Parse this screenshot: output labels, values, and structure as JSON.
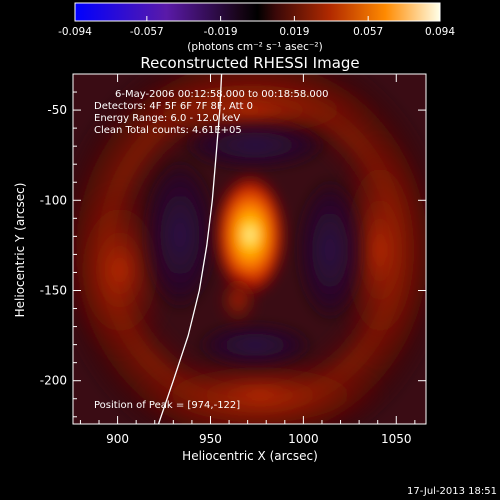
{
  "chart_data": {
    "type": "heatmap",
    "title": "Reconstructed RHESSI Image",
    "colorbar": {
      "ticks": [
        "-0.094",
        "-0.057",
        "-0.019",
        "0.019",
        "0.057",
        "0.094"
      ],
      "tick_values": [
        -0.094,
        -0.057,
        -0.019,
        0.019,
        0.057,
        0.094
      ],
      "range": [
        -0.094,
        0.094
      ],
      "colormap": "blue-purple-black-red-orange-yellow-white",
      "label": "(photons cm⁻² s⁻¹ asec⁻²)"
    },
    "xlabel": "Heliocentric X (arcsec)",
    "ylabel": "Heliocentric Y (arcsec)",
    "xlim": [
      876,
      1066
    ],
    "ylim": [
      -224,
      -30
    ],
    "x_ticks": [
      900,
      950,
      1000,
      1050
    ],
    "y_ticks": [
      -50,
      -100,
      -150,
      -200
    ],
    "annotations": [
      "6-May-2006 00:12:58.000 to 00:18:58.000",
      "Detectors: 4F 5F 6F 7F 8F, Att 0",
      "Energy Range: 6.0 - 12.0 keV",
      "Clean    Total counts: 4.61E+05"
    ],
    "peak_label": "Position of Peak = [974,-122]",
    "peak": [
      974,
      -122
    ],
    "limb_curve": [
      [
        922,
        -224
      ],
      [
        930,
        -200
      ],
      [
        938,
        -175
      ],
      [
        944,
        -150
      ],
      [
        948,
        -125
      ],
      [
        951,
        -100
      ],
      [
        953,
        -75
      ],
      [
        955,
        -50
      ],
      [
        956,
        -30
      ]
    ],
    "timestamp": "17-Jul-2013 18:51"
  }
}
